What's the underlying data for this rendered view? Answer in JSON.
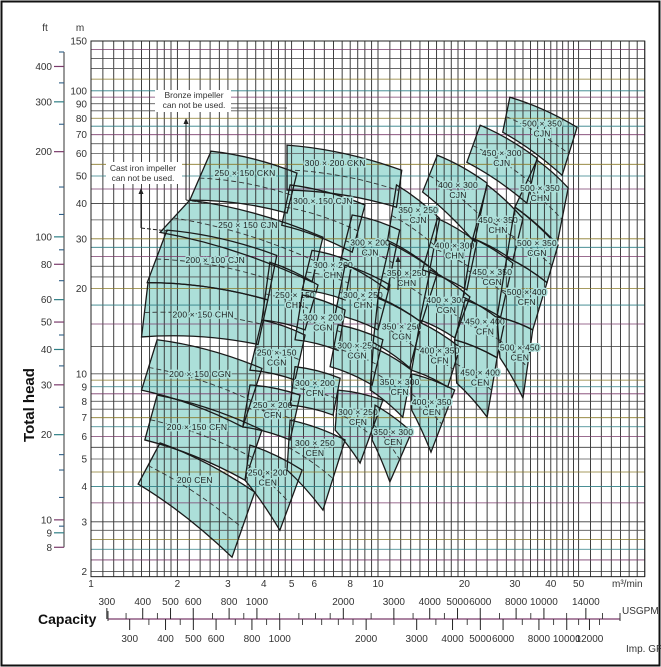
{
  "chart_data": {
    "type": "area",
    "title": "",
    "x_axis": {
      "label": "Capacity",
      "unit": "m³/min",
      "scale": "log",
      "range": [
        1,
        85
      ],
      "ticks": [
        1,
        2,
        3,
        4,
        5,
        6,
        8,
        10,
        20,
        30,
        40,
        50
      ]
    },
    "y_axis": {
      "label": "Total head",
      "unit": "m",
      "scale": "log",
      "range": [
        1.92,
        150
      ],
      "ticks": [
        2,
        3,
        4,
        5,
        6,
        7,
        8,
        9,
        10,
        20,
        30,
        40,
        50,
        60,
        70,
        80,
        90,
        100,
        150
      ]
    },
    "y2_axis": {
      "unit": "ft",
      "scale": "log",
      "ticks": [
        8,
        9,
        10,
        20,
        30,
        40,
        50,
        60,
        80,
        100,
        200,
        300,
        400
      ],
      "minor_ticks": [
        450,
        350,
        250,
        150,
        120,
        90,
        70,
        45,
        35,
        25,
        17,
        15,
        12,
        9.5
      ]
    },
    "capacity_scales": [
      {
        "unit": "USGPM",
        "ticks": [
          300,
          400,
          500,
          600,
          800,
          1000,
          2000,
          3000,
          4000,
          5000,
          6000,
          8000,
          10000,
          14000
        ],
        "minor_ticks": [
          350,
          450,
          700,
          900,
          1200,
          1400,
          1600,
          1800,
          2500,
          3500,
          4500,
          7000,
          9000,
          12000,
          16000
        ]
      },
      {
        "unit": "Imp. GPM",
        "ticks": [
          300,
          400,
          500,
          600,
          800,
          1000,
          2000,
          3000,
          4000,
          5000,
          6000,
          8000,
          10000,
          12000
        ],
        "minor_ticks": [
          350,
          450,
          700,
          900,
          1200,
          1400,
          1600,
          1800,
          2500,
          3500,
          4500,
          7000,
          9000,
          11000,
          13000
        ]
      }
    ],
    "grid": true,
    "annotations": [
      {
        "lines": [
          "Bronze impeller",
          "can not be used."
        ]
      },
      {
        "lines": [
          "Cast iron impeller",
          "can not be used."
        ]
      }
    ],
    "colors": {
      "tile_fill": "#acdfd9",
      "tile_outline": "#1a1a1a",
      "grid": "#3a3a3a",
      "text": "#222222"
    },
    "tiles": [
      {
        "label": [
          "250 × 150 CKN"
        ],
        "corners": [
          [
            2.62,
            61.2
          ],
          [
            5.22,
            51.2
          ],
          [
            4.82,
            37.0
          ],
          [
            2.21,
            41.1
          ]
        ],
        "label_at": [
          3.44,
          51.2
        ]
      },
      {
        "label": [
          "300 × 200 CKN"
        ],
        "corners": [
          [
            4.82,
            64.3
          ],
          [
            12.1,
            52.4
          ],
          [
            11.6,
            38.8
          ],
          [
            4.82,
            44.6
          ]
        ],
        "label_at": [
          7.09,
          55.5
        ]
      },
      {
        "label": [
          "300 × 150 CJN"
        ],
        "corners": [
          [
            4.94,
            46.5
          ],
          [
            9.01,
            39.5
          ],
          [
            8.13,
            26.9
          ],
          [
            4.62,
            33.5
          ]
        ],
        "label_at": [
          6.43,
          40.8
        ]
      },
      {
        "label": [
          "250 × 150 CJN"
        ],
        "corners": [
          [
            2.21,
            41.1
          ],
          [
            6.43,
            30.4
          ],
          [
            5.89,
            21.1
          ],
          [
            1.74,
            31.6
          ]
        ],
        "label_at": [
          3.52,
          33.5
        ]
      },
      {
        "label": [
          "200 × 100 CJN"
        ],
        "corners": [
          [
            1.84,
            32.2
          ],
          [
            4.44,
            26.2
          ],
          [
            4.13,
            18.25
          ],
          [
            1.57,
            21.0
          ]
        ],
        "label_at": [
          2.71,
          25.2
        ]
      },
      {
        "label": [
          "200 × 150 CHN"
        ],
        "corners": [
          [
            1.58,
            21.0
          ],
          [
            4.13,
            18.25
          ],
          [
            3.82,
            12.7
          ],
          [
            1.5,
            13.5
          ]
        ],
        "label_at": [
          2.46,
          16.2
        ]
      },
      {
        "label": [
          "200 × 150 CGN"
        ],
        "corners": [
          [
            1.7,
            13.2
          ],
          [
            3.94,
            10.45
          ],
          [
            3.38,
            6.49
          ],
          [
            1.5,
            8.76
          ]
        ],
        "label_at": [
          2.4,
          10.0
        ]
      },
      {
        "label": [
          "200 × 150 CFN"
        ],
        "corners": [
          [
            1.7,
            8.41
          ],
          [
            3.94,
            6.33
          ],
          [
            3.44,
            4.21
          ],
          [
            1.54,
            5.84
          ]
        ],
        "label_at": [
          2.34,
          6.49
        ]
      },
      {
        "label": [
          "200 CEN"
        ],
        "corners": [
          [
            1.74,
            5.7
          ],
          [
            3.72,
            3.82
          ],
          [
            3.1,
            2.25
          ],
          [
            1.46,
            4.08
          ]
        ],
        "label_at": [
          2.3,
          4.21
        ]
      },
      {
        "label": [
          "250 × 150",
          "CHN"
        ],
        "corners": [
          [
            4.2,
            24.8
          ],
          [
            6.18,
            20.6
          ],
          [
            5.57,
            14.3
          ],
          [
            3.94,
            15.5
          ]
        ],
        "label_at": [
          5.14,
          18.25
        ]
      },
      {
        "label": [
          "250 × 150",
          "CGN"
        ],
        "corners": [
          [
            3.94,
            15.5
          ],
          [
            5.57,
            13.7
          ],
          [
            5.14,
            9.51
          ],
          [
            3.58,
            10.3
          ]
        ],
        "label_at": [
          4.44,
          11.4
        ]
      },
      {
        "label": [
          "250 × 200",
          "CFN"
        ],
        "corners": [
          [
            3.58,
            9.13
          ],
          [
            5.35,
            8.41
          ],
          [
            4.94,
            5.84
          ],
          [
            3.38,
            6.49
          ]
        ],
        "label_at": [
          4.3,
          7.45
        ]
      },
      {
        "label": [
          "250 × 200",
          "CEN"
        ],
        "corners": [
          [
            3.58,
            5.6
          ],
          [
            5.44,
            4.57
          ],
          [
            4.55,
            2.8
          ],
          [
            3.44,
            4.21
          ]
        ],
        "label_at": [
          4.13,
          4.31
        ]
      },
      {
        "label": [
          "300 × 200",
          "CJN"
        ],
        "corners": [
          [
            8.13,
            36.4
          ],
          [
            11.9,
            32.2
          ],
          [
            10.8,
            19.8
          ],
          [
            7.38,
            24.8
          ]
        ],
        "label_at": [
          9.39,
          28.0
        ]
      },
      {
        "label": [
          "300 × 200",
          "CHN"
        ],
        "corners": [
          [
            5.89,
            27.3
          ],
          [
            8.13,
            24.8
          ],
          [
            7.68,
            18.25
          ],
          [
            5.44,
            19.8
          ]
        ],
        "label_at": [
          6.97,
          23.3
        ]
      },
      {
        "label": [
          "300 × 250",
          "CHN"
        ],
        "corners": [
          [
            7.68,
            24.2
          ],
          [
            11.0,
            20.6
          ],
          [
            10.0,
            14.3
          ],
          [
            7.09,
            16.2
          ]
        ],
        "label_at": [
          8.87,
          18.25
        ]
      },
      {
        "label": [
          "300 × 200",
          "CGN"
        ],
        "corners": [
          [
            5.44,
            19.0
          ],
          [
            7.68,
            16.8
          ],
          [
            7.26,
            12.1
          ],
          [
            5.14,
            13.2
          ]
        ],
        "label_at": [
          6.43,
          15.2
        ]
      },
      {
        "label": [
          "300 × 250",
          "CGN"
        ],
        "corners": [
          [
            7.26,
            14.9
          ],
          [
            10.4,
            13.2
          ],
          [
            9.54,
            9.13
          ],
          [
            6.81,
            10.6
          ]
        ],
        "label_at": [
          8.46,
          12.1
        ]
      },
      {
        "label": [
          "300 × 200",
          "CFN"
        ],
        "corners": [
          [
            5.14,
            10.6
          ],
          [
            7.38,
            9.65
          ],
          [
            6.97,
            7.15
          ],
          [
            4.94,
            7.75
          ]
        ],
        "label_at": [
          6.03,
          8.91
        ]
      },
      {
        "label": [
          "300 × 250",
          "CFN"
        ],
        "corners": [
          [
            7.26,
            8.76
          ],
          [
            10.4,
            8.07
          ],
          [
            8.66,
            4.84
          ],
          [
            7.09,
            6.33
          ]
        ],
        "label_at": [
          8.52,
          7.03
        ]
      },
      {
        "label": [
          "300 × 250",
          "CEN"
        ],
        "corners": [
          [
            4.94,
            6.86
          ],
          [
            7.68,
            5.84
          ],
          [
            6.43,
            3.3
          ],
          [
            4.82,
            4.57
          ]
        ],
        "label_at": [
          6.03,
          5.46
        ]
      },
      {
        "label": [
          "350 × 250",
          "CJN"
        ],
        "corners": [
          [
            11.6,
            46.5
          ],
          [
            16.4,
            35.4
          ],
          [
            15.2,
            23.8
          ],
          [
            10.8,
            29.6
          ]
        ],
        "label_at": [
          13.8,
          36.4
        ]
      },
      {
        "label": [
          "350 × 250",
          "CHN"
        ],
        "corners": [
          [
            11.0,
            28.9
          ],
          [
            16.1,
            22.7
          ],
          [
            14.2,
            15.2
          ],
          [
            9.96,
            18.7
          ]
        ],
        "label_at": [
          12.6,
          21.8
        ]
      },
      {
        "label": [
          "350 × 250",
          "CGN"
        ],
        "corners": [
          [
            10.0,
            18.5
          ],
          [
            14.2,
            15.2
          ],
          [
            12.9,
            10.5
          ],
          [
            9.62,
            12.9
          ]
        ],
        "label_at": [
          12.1,
          14.1
        ]
      },
      {
        "label": [
          "350 × 300",
          "CFN"
        ],
        "corners": [
          [
            9.62,
            12.4
          ],
          [
            13.1,
            10.3
          ],
          [
            12.2,
            7.03
          ],
          [
            9.39,
            8.76
          ]
        ],
        "label_at": [
          11.9,
          8.98
        ]
      },
      {
        "label": [
          "350 × 300",
          "CEN"
        ],
        "corners": [
          [
            9.77,
            7.75
          ],
          [
            13.1,
            6.23
          ],
          [
            11.0,
            4.15
          ],
          [
            9.54,
            5.84
          ]
        ],
        "label_at": [
          11.3,
          5.98
        ]
      },
      {
        "label": [
          "400 × 300",
          "CJN"
        ],
        "corners": [
          [
            16.1,
            59.2
          ],
          [
            24.0,
            47.2
          ],
          [
            21.7,
            29.2
          ],
          [
            14.3,
            43.9
          ]
        ],
        "label_at": [
          19.0,
          44.6
        ]
      },
      {
        "label": [
          "400 × 300",
          "CHN"
        ],
        "corners": [
          [
            16.1,
            35.4
          ],
          [
            22.1,
            29.2
          ],
          [
            20.4,
            19.8
          ],
          [
            14.3,
            23.3
          ]
        ],
        "label_at": [
          18.5,
          27.3
        ]
      },
      {
        "label": [
          "400 × 300",
          "CGN"
        ],
        "corners": [
          [
            15.2,
            23.3
          ],
          [
            20.9,
            18.7
          ],
          [
            18.5,
            13.4
          ],
          [
            14.0,
            15.5
          ]
        ],
        "label_at": [
          17.3,
          17.5
        ]
      },
      {
        "label": [
          "400 × 350",
          "CFN"
        ],
        "corners": [
          [
            14.0,
            15.2
          ],
          [
            19.3,
            12.4
          ],
          [
            17.5,
            8.98
          ],
          [
            13.1,
            10.3
          ]
        ],
        "label_at": [
          16.4,
          11.6
        ]
      },
      {
        "label": [
          "400 × 350",
          "CEN"
        ],
        "corners": [
          [
            13.1,
            10.0
          ],
          [
            18.5,
            8.76
          ],
          [
            15.3,
            5.29
          ],
          [
            13.1,
            7.45
          ]
        ],
        "label_at": [
          15.4,
          7.63
        ]
      },
      {
        "label": [
          "450 × 300",
          "CJN"
        ],
        "corners": [
          [
            22.7,
            75.6
          ],
          [
            35.8,
            57.8
          ],
          [
            33.0,
            40.1
          ],
          [
            20.4,
            55.9
          ]
        ],
        "label_at": [
          27.0,
          57.8
        ]
      },
      {
        "label": [
          "450 × 350",
          "CHN"
        ],
        "corners": [
          [
            24.0,
            46.5
          ],
          [
            32.0,
            35.4
          ],
          [
            29.5,
            25.2
          ],
          [
            21.4,
            30.1
          ]
        ],
        "label_at": [
          26.2,
          33.5
        ]
      },
      {
        "label": [
          "450 × 350",
          "CGN"
        ],
        "corners": [
          [
            21.4,
            30.1
          ],
          [
            29.5,
            24.6
          ],
          [
            26.6,
            15.5
          ],
          [
            19.8,
            18.7
          ]
        ],
        "label_at": [
          25.0,
          22.0
        ]
      },
      {
        "label": [
          "450 × 400",
          "CFN"
        ],
        "corners": [
          [
            20.1,
            18.25
          ],
          [
            27.7,
            15.5
          ],
          [
            26.0,
            11.4
          ],
          [
            18.5,
            13.2
          ]
        ],
        "label_at": [
          23.6,
          14.7
        ]
      },
      {
        "label": [
          "450 × 400",
          "CEN"
        ],
        "corners": [
          [
            18.5,
            13.2
          ],
          [
            26.0,
            11.4
          ],
          [
            24.0,
            7.03
          ],
          [
            18.8,
            9.28
          ]
        ],
        "label_at": [
          22.7,
          9.71
        ]
      },
      {
        "label": [
          "500 × 350",
          "CJN"
        ],
        "corners": [
          [
            28.8,
            94.9
          ],
          [
            49.4,
            74.3
          ],
          [
            43.8,
            50.3
          ],
          [
            27.2,
            71.4
          ]
        ],
        "label_at": [
          37.3,
          73.7
        ]
      },
      {
        "label": [
          "500 × 350",
          "CHN"
        ],
        "corners": [
          [
            35.8,
            56.9
          ],
          [
            46.0,
            45.4
          ],
          [
            42.0,
            28.5
          ],
          [
            30.0,
            38.8
          ]
        ],
        "label_at": [
          36.7,
          43.5
        ]
      },
      {
        "label": [
          "500 × 350",
          "CGN"
        ],
        "corners": [
          [
            30.0,
            38.8
          ],
          [
            42.4,
            28.5
          ],
          [
            38.8,
            21.0
          ],
          [
            28.1,
            25.8
          ]
        ],
        "label_at": [
          35.8,
          27.8
        ]
      },
      {
        "label": [
          "500 × 400",
          "CFN"
        ],
        "corners": [
          [
            28.1,
            25.8
          ],
          [
            38.8,
            21.0
          ],
          [
            34.6,
            14.3
          ],
          [
            26.0,
            15.9
          ]
        ],
        "label_at": [
          33.0,
          18.7
        ]
      },
      {
        "label": [
          "500 × 450",
          "CEN"
        ],
        "corners": [
          [
            26.0,
            15.9
          ],
          [
            34.6,
            14.3
          ],
          [
            32.0,
            8.21
          ],
          [
            26.6,
            11.4
          ]
        ],
        "label_at": [
          31.2,
          11.9
        ]
      }
    ]
  }
}
